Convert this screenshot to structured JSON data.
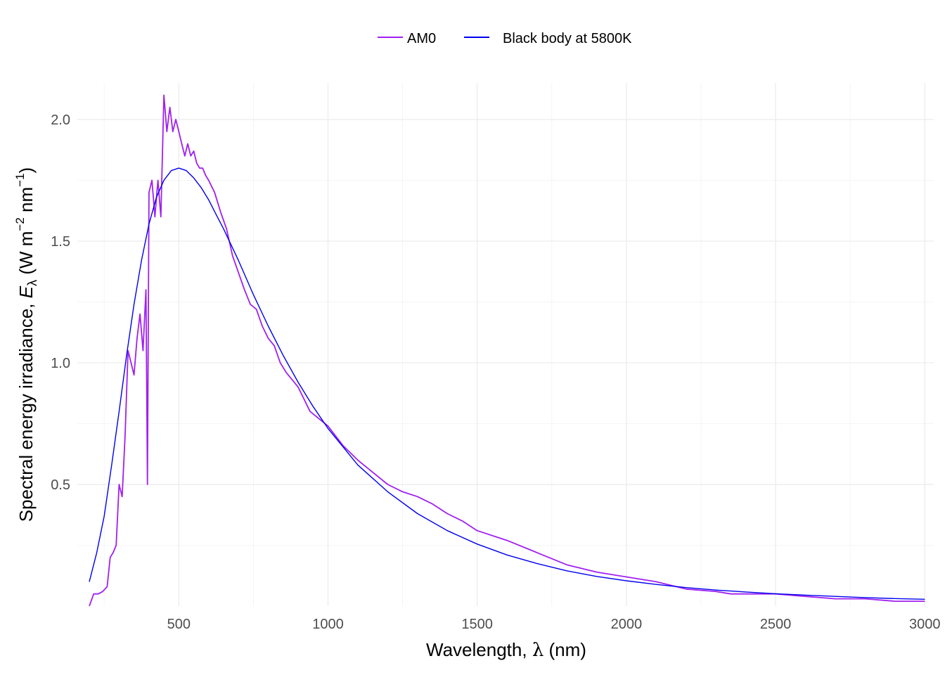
{
  "chart_data": {
    "type": "line",
    "xlabel": {
      "prefix": "Wavelength, ",
      "symbol": "λ",
      "suffix": " (nm)"
    },
    "ylabel": {
      "prefix": "Spectral energy irradiance, ",
      "symbol": "E",
      "subscript": "λ",
      "units_open": " (W m",
      "exp1": "−2",
      "units_mid": " nm",
      "exp2": "−1",
      "units_close": ")"
    },
    "xlim": [
      160,
      3030
    ],
    "ylim": [
      0,
      2.15
    ],
    "x_ticks": [
      500,
      1000,
      1500,
      2000,
      2500,
      3000
    ],
    "x_tick_labels": [
      "500",
      "1000",
      "1500",
      "2000",
      "2500",
      "3000"
    ],
    "y_ticks": [
      0.5,
      1.0,
      1.5,
      2.0
    ],
    "y_tick_labels": [
      "0.5",
      "1.0",
      "1.5",
      "2.0"
    ],
    "grid": true,
    "legend": {
      "position": "top",
      "entries": [
        "AM0",
        "Black body at 5800K"
      ]
    },
    "colors": {
      "AM0": "#a020f0",
      "Black body at 5800K": "#0000ee"
    },
    "series": [
      {
        "name": "AM0",
        "x": [
          200,
          215,
          230,
          245,
          260,
          270,
          280,
          290,
          300,
          310,
          320,
          330,
          340,
          350,
          360,
          370,
          380,
          390,
          395,
          400,
          410,
          420,
          430,
          440,
          450,
          460,
          470,
          480,
          490,
          500,
          510,
          520,
          530,
          540,
          550,
          560,
          570,
          580,
          590,
          600,
          620,
          640,
          660,
          680,
          700,
          720,
          740,
          760,
          780,
          800,
          820,
          840,
          860,
          880,
          900,
          920,
          940,
          960,
          980,
          1000,
          1050,
          1100,
          1150,
          1200,
          1250,
          1300,
          1350,
          1400,
          1450,
          1500,
          1600,
          1700,
          1800,
          1900,
          2000,
          2100,
          2200,
          2300,
          2350,
          2400,
          2500,
          2600,
          2700,
          2800,
          2900,
          3000
        ],
        "y": [
          0.0,
          0.05,
          0.05,
          0.06,
          0.08,
          0.2,
          0.22,
          0.25,
          0.5,
          0.45,
          0.7,
          1.05,
          1.0,
          0.95,
          1.1,
          1.2,
          1.05,
          1.3,
          0.5,
          1.7,
          1.75,
          1.6,
          1.75,
          1.6,
          2.1,
          1.95,
          2.05,
          1.95,
          2.0,
          1.95,
          1.9,
          1.85,
          1.9,
          1.85,
          1.87,
          1.82,
          1.8,
          1.8,
          1.77,
          1.75,
          1.7,
          1.62,
          1.55,
          1.44,
          1.37,
          1.3,
          1.24,
          1.22,
          1.15,
          1.1,
          1.07,
          1.0,
          0.96,
          0.93,
          0.9,
          0.85,
          0.8,
          0.78,
          0.76,
          0.74,
          0.66,
          0.6,
          0.55,
          0.5,
          0.47,
          0.45,
          0.42,
          0.38,
          0.35,
          0.31,
          0.27,
          0.22,
          0.17,
          0.14,
          0.12,
          0.1,
          0.07,
          0.06,
          0.05,
          0.05,
          0.05,
          0.04,
          0.03,
          0.03,
          0.02,
          0.02
        ]
      },
      {
        "name": "Black body at 5800K",
        "x": [
          200,
          225,
          250,
          275,
          300,
          325,
          350,
          375,
          400,
          425,
          450,
          475,
          500,
          525,
          550,
          575,
          600,
          625,
          650,
          700,
          750,
          800,
          850,
          900,
          950,
          1000,
          1100,
          1200,
          1300,
          1400,
          1500,
          1600,
          1700,
          1800,
          1900,
          2000,
          2100,
          2200,
          2300,
          2400,
          2500,
          2600,
          2700,
          2800,
          2900,
          3000
        ],
        "y": [
          0.1,
          0.22,
          0.37,
          0.58,
          0.8,
          1.03,
          1.24,
          1.42,
          1.57,
          1.68,
          1.75,
          1.79,
          1.8,
          1.79,
          1.76,
          1.72,
          1.67,
          1.61,
          1.55,
          1.42,
          1.28,
          1.15,
          1.03,
          0.92,
          0.82,
          0.73,
          0.58,
          0.47,
          0.38,
          0.31,
          0.255,
          0.21,
          0.175,
          0.145,
          0.122,
          0.104,
          0.089,
          0.076,
          0.066,
          0.058,
          0.051,
          0.045,
          0.04,
          0.035,
          0.031,
          0.028
        ]
      }
    ]
  }
}
